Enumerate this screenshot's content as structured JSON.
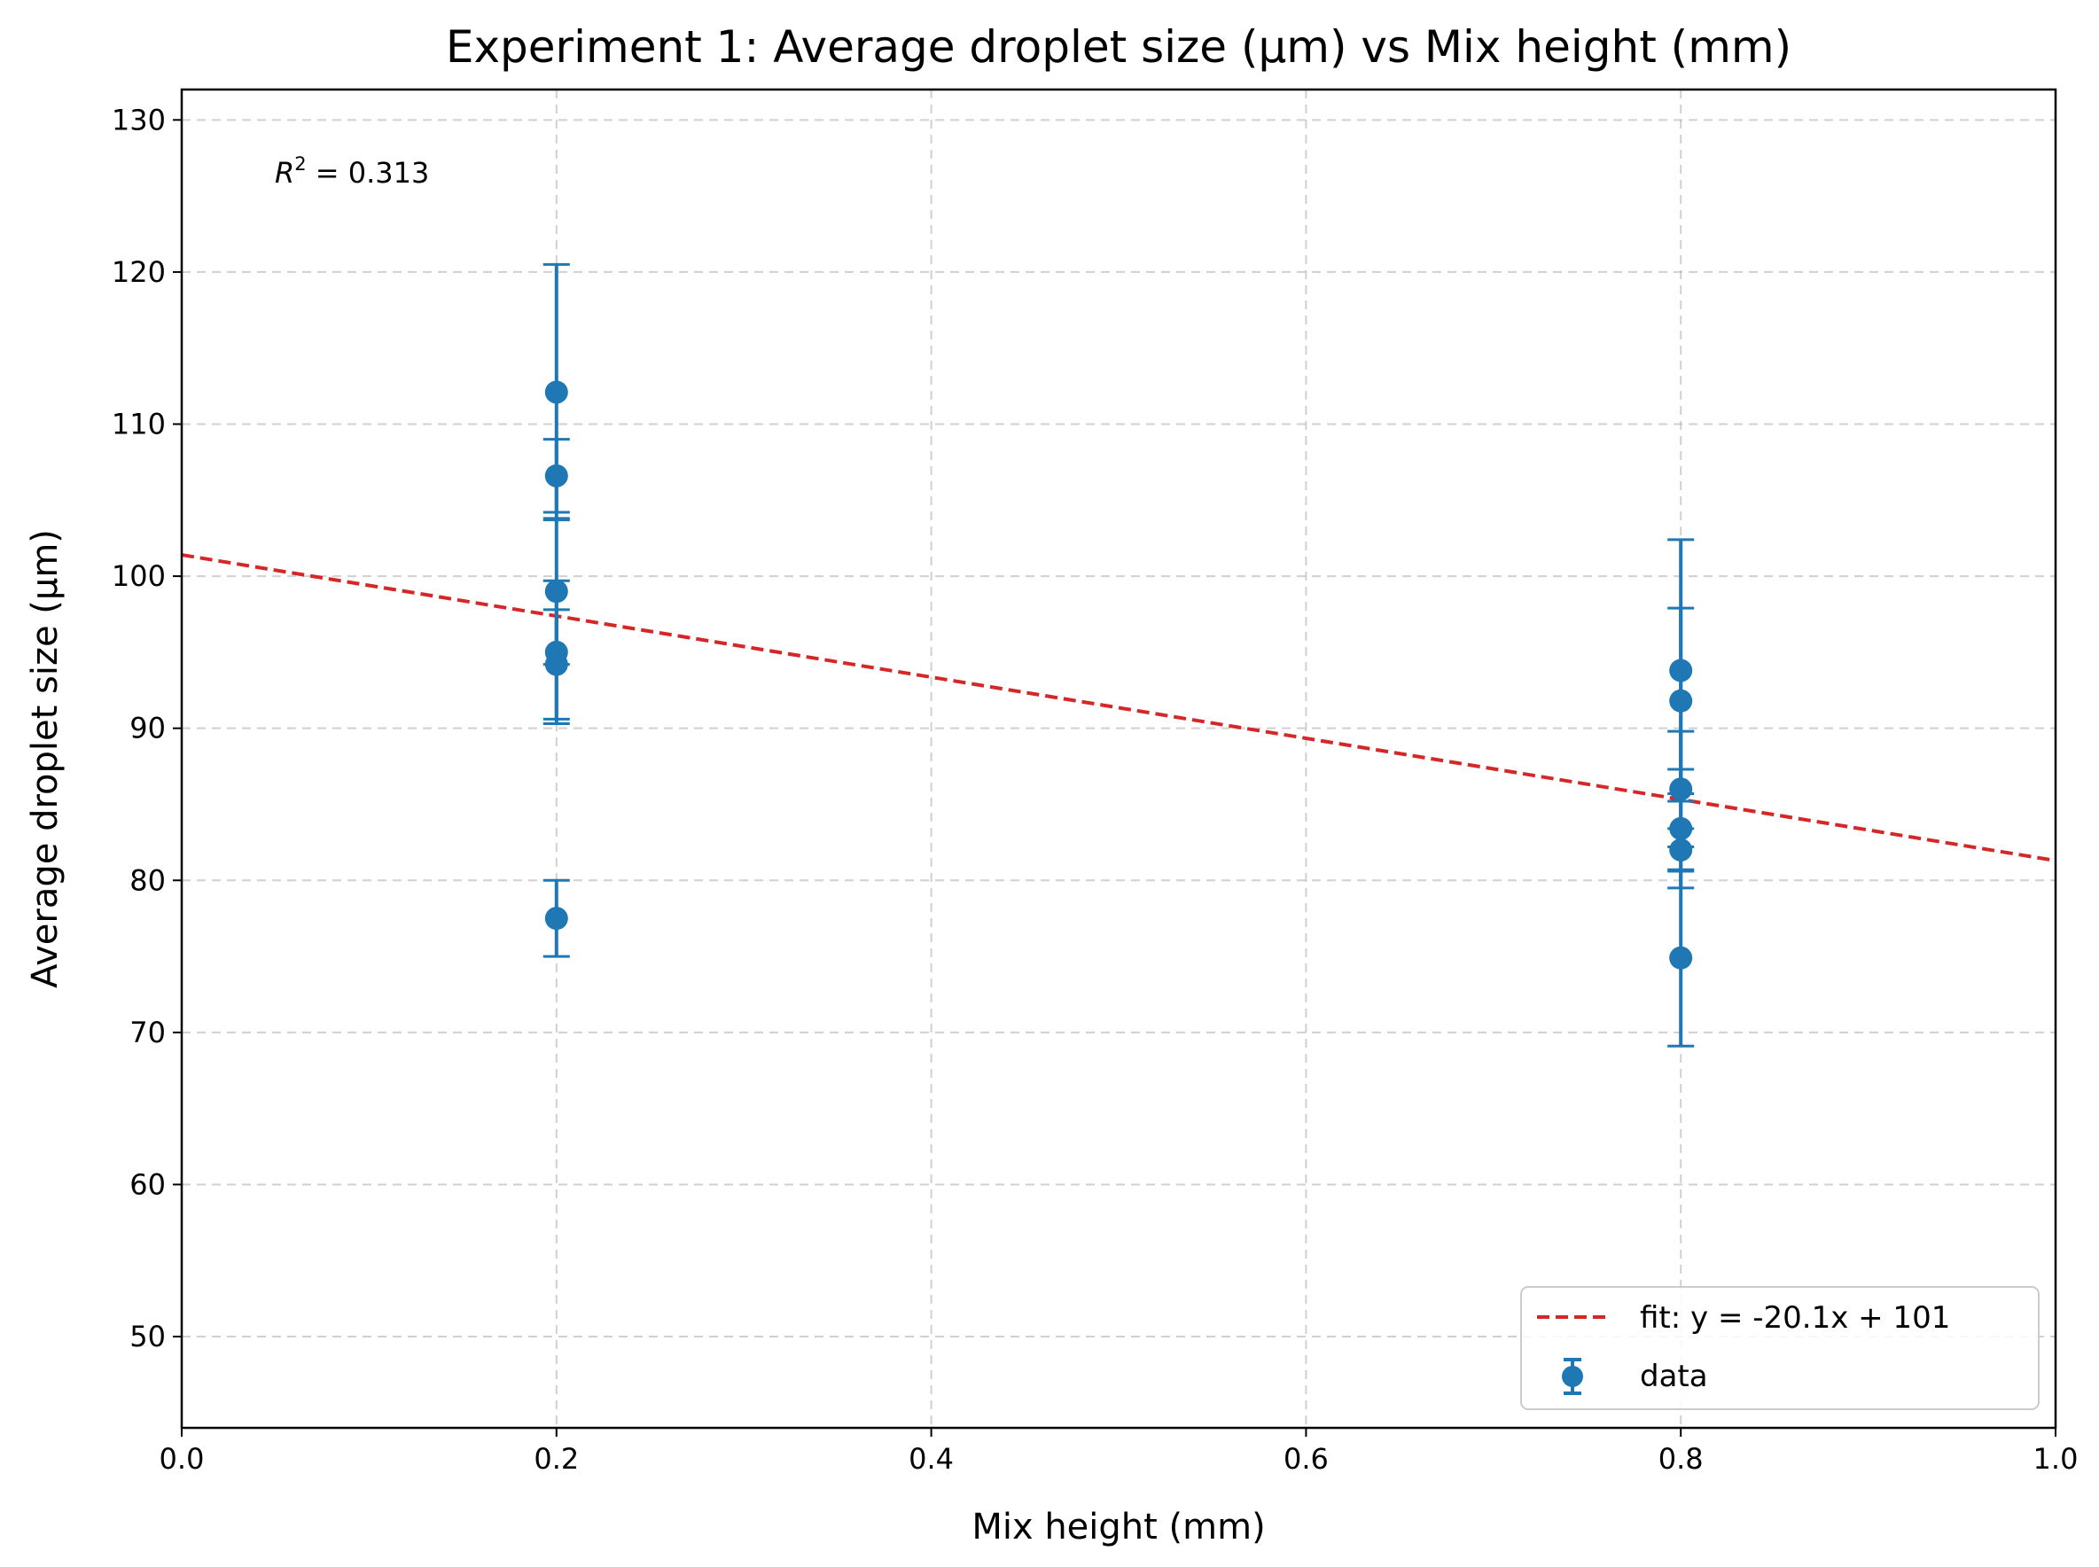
{
  "chart_data": {
    "type": "scatter",
    "title": "Experiment 1: Average droplet size (µm) vs Mix height (mm)",
    "xlabel": "Mix height (mm)",
    "ylabel": "Average droplet size (µm)",
    "xlim": [
      0.0,
      1.0
    ],
    "ylim": [
      44,
      132
    ],
    "xticks": [
      "0.0",
      "0.2",
      "0.4",
      "0.6",
      "0.8",
      "1.0"
    ],
    "yticks": [
      "50",
      "60",
      "70",
      "80",
      "90",
      "100",
      "110",
      "120",
      "130"
    ],
    "grid": true,
    "legend_position": "lower-right",
    "annotation": {
      "prefix": "R",
      "superscript": "2",
      "text": " = 0.313"
    },
    "series": [
      {
        "name": "data",
        "style": "errorbar-points",
        "color": "#1f77b4",
        "points": [
          {
            "x": 0.2,
            "y": 112.1,
            "yerr": 8.4
          },
          {
            "x": 0.2,
            "y": 106.6,
            "yerr": 2.4
          },
          {
            "x": 0.2,
            "y": 99.0,
            "yerr": 4.8
          },
          {
            "x": 0.2,
            "y": 95.0,
            "yerr": 4.7
          },
          {
            "x": 0.2,
            "y": 94.2,
            "yerr": 3.6
          },
          {
            "x": 0.2,
            "y": 77.5,
            "yerr": 2.5
          },
          {
            "x": 0.8,
            "y": 93.8,
            "yerr": 8.6
          },
          {
            "x": 0.8,
            "y": 91.8,
            "yerr": 6.1
          },
          {
            "x": 0.8,
            "y": 86.0,
            "yerr": 3.8
          },
          {
            "x": 0.8,
            "y": 83.4,
            "yerr": 3.9
          },
          {
            "x": 0.8,
            "y": 82.0,
            "yerr": 1.4
          },
          {
            "x": 0.8,
            "y": 74.9,
            "yerr": 5.8
          }
        ]
      },
      {
        "name": "fit: y = -20.1x + 101",
        "style": "dashed-line",
        "color": "#d62728",
        "slope": -20.1,
        "intercept": 101.4
      }
    ]
  }
}
